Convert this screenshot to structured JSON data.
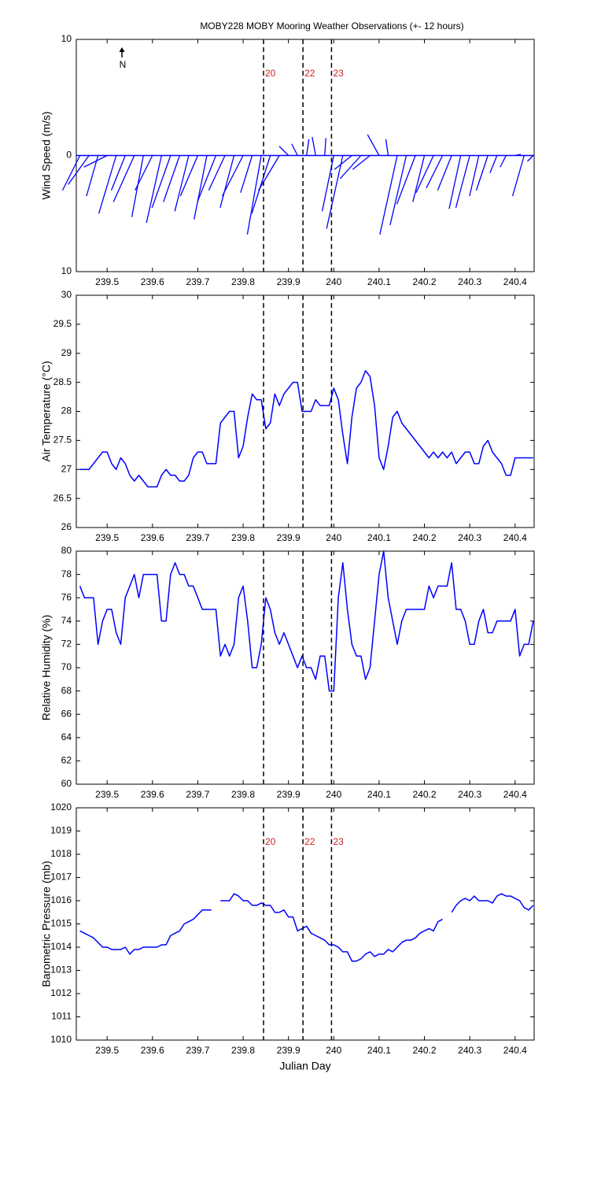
{
  "chart_data": [
    {
      "type": "stick",
      "title": "MOBY228 MOBY Mooring Weather Observations (+- 12 hours)",
      "y_label": "Wind Speed (m/s)",
      "north_label": "N",
      "color": "#0000ff",
      "x": [
        239.44,
        239.46,
        239.48,
        239.5,
        239.52,
        239.54,
        239.56,
        239.58,
        239.6,
        239.62,
        239.64,
        239.66,
        239.68,
        239.7,
        239.72,
        239.74,
        239.76,
        239.78,
        239.8,
        239.82,
        239.84,
        239.86,
        239.88,
        239.9,
        239.92,
        239.94,
        239.96,
        239.98,
        240,
        240.02,
        240.04,
        240.06,
        240.08,
        240.1,
        240.12,
        240.14,
        240.16,
        240.18,
        240.2,
        240.22,
        240.24,
        240.26,
        240.28,
        240.3,
        240.32,
        240.34,
        240.36,
        240.38,
        240.4,
        240.42,
        240.44
      ],
      "u": [
        -1.5,
        -1.8,
        -1,
        -2,
        -1.5,
        -1.2,
        -1.8,
        -1,
        -1.5,
        -1.3,
        -1.6,
        -1.4,
        -1.2,
        -1.5,
        -1.1,
        -1.6,
        -1.4,
        -1.2,
        -1.8,
        -1,
        -1.2,
        -1.6,
        -1.8,
        -0.8,
        -0.5,
        0.2,
        -0.3,
        0.1,
        -1,
        -1.4,
        -1.5,
        -1.8,
        -1.5,
        -1,
        -0.2,
        -1.5,
        -1.4,
        -1.6,
        -1,
        -1.5,
        -1.4,
        -1.2,
        -1,
        -1.2,
        -0.8,
        -1,
        -0.6,
        -0.5,
        0.5,
        -1,
        -0.5
      ],
      "v": [
        -3,
        -2.5,
        -3.5,
        -1,
        -5,
        -3,
        -4,
        -5.3,
        -3,
        -5.8,
        -4.5,
        -4,
        -4.8,
        -3.5,
        -5.5,
        -4,
        -3,
        -4.5,
        -3.5,
        -3.2,
        -6.8,
        -5,
        -3,
        0.8,
        1,
        1.4,
        1.6,
        1.5,
        -4.8,
        -6.3,
        -1.2,
        -2,
        -1.2,
        1.8,
        1.4,
        -6.8,
        -6,
        -4.2,
        -4,
        -3.2,
        -2.8,
        -3,
        -4.6,
        -4.5,
        -3.5,
        -3,
        -1.5,
        -1,
        0.1,
        -3.5,
        -0.5
      ],
      "xlim": [
        239.432,
        240.442
      ],
      "xticks": [
        239.5,
        239.6,
        239.7,
        239.8,
        239.9,
        240,
        240.1,
        240.2,
        240.3,
        240.4
      ],
      "ylim": [
        -10,
        10
      ],
      "yticks": [
        10,
        0,
        {
          "value": -10,
          "label": "10"
        }
      ],
      "vlines": [
        239.845,
        239.932,
        239.995
      ],
      "vline_labels": [
        "20",
        "22",
        "23"
      ],
      "vline_color": "#cc2222"
    },
    {
      "type": "line",
      "y_label": "Air Temperature (°C)",
      "color": "#0000ff",
      "x": [
        239.44,
        239.45,
        239.46,
        239.47,
        239.48,
        239.49,
        239.5,
        239.51,
        239.52,
        239.53,
        239.54,
        239.55,
        239.56,
        239.57,
        239.58,
        239.59,
        239.6,
        239.61,
        239.62,
        239.63,
        239.64,
        239.65,
        239.66,
        239.67,
        239.68,
        239.69,
        239.7,
        239.71,
        239.72,
        239.73,
        239.74,
        239.75,
        239.76,
        239.77,
        239.78,
        239.79,
        239.8,
        239.81,
        239.82,
        239.83,
        239.84,
        239.85,
        239.86,
        239.87,
        239.88,
        239.89,
        239.9,
        239.91,
        239.92,
        239.93,
        239.94,
        239.95,
        239.96,
        239.97,
        239.98,
        239.99,
        240,
        240.01,
        240.02,
        240.03,
        240.04,
        240.05,
        240.06,
        240.07,
        240.08,
        240.09,
        240.1,
        240.11,
        240.12,
        240.13,
        240.14,
        240.15,
        240.16,
        240.17,
        240.18,
        240.19,
        240.2,
        240.21,
        240.22,
        240.23,
        240.24,
        240.25,
        240.26,
        240.27,
        240.28,
        240.29,
        240.3,
        240.31,
        240.32,
        240.33,
        240.34,
        240.35,
        240.36,
        240.37,
        240.38,
        240.39,
        240.4,
        240.41,
        240.42,
        240.43,
        240.44
      ],
      "values": [
        27,
        27,
        27,
        27.1,
        27.2,
        27.3,
        27.3,
        27.1,
        27,
        27.2,
        27.1,
        26.9,
        26.8,
        26.9,
        26.8,
        26.7,
        26.7,
        26.7,
        26.9,
        27,
        26.9,
        26.9,
        26.8,
        26.8,
        26.9,
        27.2,
        27.3,
        27.3,
        27.1,
        27.1,
        27.1,
        27.8,
        27.9,
        28,
        28,
        27.2,
        27.4,
        27.9,
        28.3,
        28.2,
        28.2,
        27.7,
        27.8,
        28.3,
        28.1,
        28.3,
        28.4,
        28.5,
        28.5,
        28,
        28,
        28,
        28.2,
        28.1,
        28.1,
        28.1,
        28.4,
        28.2,
        27.6,
        27.1,
        27.9,
        28.4,
        28.5,
        28.7,
        28.6,
        28.1,
        27.2,
        27,
        27.4,
        27.9,
        28,
        27.8,
        27.7,
        27.6,
        27.5,
        27.4,
        27.3,
        27.2,
        27.3,
        27.2,
        27.3,
        27.2,
        27.3,
        27.1,
        27.2,
        27.3,
        27.3,
        27.1,
        27.1,
        27.4,
        27.5,
        27.3,
        27.2,
        27.1,
        26.9,
        26.9,
        27.2,
        27.2,
        27.2,
        27.2,
        27.2
      ],
      "xlim": [
        239.432,
        240.442
      ],
      "xticks": [
        239.5,
        239.6,
        239.7,
        239.8,
        239.9,
        240,
        240.1,
        240.2,
        240.3,
        240.4
      ],
      "ylim": [
        26,
        30
      ],
      "yticks": [
        26,
        26.5,
        27,
        27.5,
        28,
        28.5,
        29,
        29.5,
        30
      ],
      "vlines": [
        239.845,
        239.932,
        239.995
      ]
    },
    {
      "type": "line",
      "y_label": "Relative Humidity (%)",
      "color": "#0000ff",
      "x": [
        239.44,
        239.45,
        239.46,
        239.47,
        239.48,
        239.49,
        239.5,
        239.51,
        239.52,
        239.53,
        239.54,
        239.55,
        239.56,
        239.57,
        239.58,
        239.59,
        239.6,
        239.61,
        239.62,
        239.63,
        239.64,
        239.65,
        239.66,
        239.67,
        239.68,
        239.69,
        239.7,
        239.71,
        239.72,
        239.73,
        239.74,
        239.75,
        239.76,
        239.77,
        239.78,
        239.79,
        239.8,
        239.81,
        239.82,
        239.83,
        239.84,
        239.85,
        239.86,
        239.87,
        239.88,
        239.89,
        239.9,
        239.91,
        239.92,
        239.93,
        239.94,
        239.95,
        239.96,
        239.97,
        239.98,
        239.99,
        240,
        240.01,
        240.02,
        240.03,
        240.04,
        240.05,
        240.06,
        240.07,
        240.08,
        240.09,
        240.1,
        240.11,
        240.12,
        240.13,
        240.14,
        240.15,
        240.16,
        240.17,
        240.18,
        240.19,
        240.2,
        240.21,
        240.22,
        240.23,
        240.24,
        240.25,
        240.26,
        240.27,
        240.28,
        240.29,
        240.3,
        240.31,
        240.32,
        240.33,
        240.34,
        240.35,
        240.36,
        240.37,
        240.38,
        240.39,
        240.4,
        240.41,
        240.42,
        240.43,
        240.44
      ],
      "values": [
        77,
        76,
        76,
        76,
        72,
        74,
        75,
        75,
        73,
        72,
        76,
        77,
        78,
        76,
        78,
        78,
        78,
        78,
        74,
        74,
        78,
        79,
        78,
        78,
        77,
        77,
        76,
        75,
        75,
        75,
        75,
        71,
        72,
        71,
        72,
        76,
        77,
        74,
        70,
        70,
        72,
        76,
        75,
        73,
        72,
        73,
        72,
        71,
        70,
        71,
        70,
        70,
        69,
        71,
        71,
        68,
        68,
        76,
        79,
        75,
        72,
        71,
        71,
        69,
        70,
        74,
        78,
        80,
        76,
        74,
        72,
        74,
        75,
        75,
        75,
        75,
        75,
        77,
        76,
        77,
        77,
        77,
        79,
        75,
        75,
        74,
        72,
        72,
        74,
        75,
        73,
        73,
        74,
        74,
        74,
        74,
        75,
        71,
        72,
        72,
        74
      ],
      "xlim": [
        239.432,
        240.442
      ],
      "xticks": [
        239.5,
        239.6,
        239.7,
        239.8,
        239.9,
        240,
        240.1,
        240.2,
        240.3,
        240.4
      ],
      "ylim": [
        60,
        80
      ],
      "yticks": [
        60,
        62,
        64,
        66,
        68,
        70,
        72,
        74,
        76,
        78,
        80
      ],
      "vlines": [
        239.845,
        239.932,
        239.995
      ]
    },
    {
      "type": "line",
      "y_label": "Barometric Pressure (mb)",
      "x_label": "Julian Day",
      "color": "#0000ff",
      "x": [
        239.44,
        239.45,
        239.46,
        239.47,
        239.48,
        239.49,
        239.5,
        239.51,
        239.52,
        239.53,
        239.54,
        239.55,
        239.56,
        239.57,
        239.58,
        239.59,
        239.6,
        239.61,
        239.62,
        239.63,
        239.64,
        239.65,
        239.66,
        239.67,
        239.68,
        239.69,
        239.7,
        239.71,
        239.72,
        239.73,
        239.74,
        239.75,
        239.76,
        239.77,
        239.78,
        239.79,
        239.8,
        239.81,
        239.82,
        239.83,
        239.84,
        239.85,
        239.86,
        239.87,
        239.88,
        239.89,
        239.9,
        239.91,
        239.92,
        239.93,
        239.94,
        239.95,
        239.96,
        239.97,
        239.98,
        239.99,
        240,
        240.01,
        240.02,
        240.03,
        240.04,
        240.05,
        240.06,
        240.07,
        240.08,
        240.09,
        240.1,
        240.11,
        240.12,
        240.13,
        240.14,
        240.15,
        240.16,
        240.17,
        240.18,
        240.19,
        240.2,
        240.21,
        240.22,
        240.23,
        240.24,
        240.25,
        240.26,
        240.27,
        240.28,
        240.29,
        240.3,
        240.31,
        240.32,
        240.33,
        240.34,
        240.35,
        240.36,
        240.37,
        240.38,
        240.39,
        240.4,
        240.41,
        240.42,
        240.43,
        240.44
      ],
      "values": [
        1014.7,
        1014.6,
        1014.5,
        1014.4,
        1014.2,
        1014,
        1014,
        1013.9,
        1013.9,
        1013.9,
        1014,
        1013.7,
        1013.9,
        1013.9,
        1014,
        1014,
        1014,
        1014,
        1014.1,
        1014.1,
        1014.5,
        1014.6,
        1014.7,
        1015,
        1015.1,
        1015.2,
        1015.4,
        1015.6,
        1015.6,
        1015.6,
        null,
        1016,
        1016,
        1016,
        1016.3,
        1016.2,
        1016,
        1016,
        1015.8,
        1015.8,
        1015.9,
        1015.8,
        1015.8,
        1015.5,
        1015.5,
        1015.6,
        1015.3,
        1015.3,
        1014.7,
        1014.8,
        1014.9,
        1014.6,
        1014.5,
        1014.4,
        1014.3,
        1014.1,
        1014.1,
        1014,
        1013.8,
        1013.8,
        1013.4,
        1013.4,
        1013.5,
        1013.7,
        1013.8,
        1013.6,
        1013.7,
        1013.7,
        1013.9,
        1013.8,
        1014,
        1014.2,
        1014.3,
        1014.3,
        1014.4,
        1014.6,
        1014.7,
        1014.8,
        1014.7,
        1015.1,
        1015.2,
        null,
        1015.5,
        1015.8,
        1016,
        1016.1,
        1016,
        1016.2,
        1016,
        1016,
        1016,
        1015.9,
        1016.2,
        1016.3,
        1016.2,
        1016.2,
        1016.1,
        1016,
        1015.7,
        1015.6,
        1015.8
      ],
      "xlim": [
        239.432,
        240.442
      ],
      "xticks": [
        239.5,
        239.6,
        239.7,
        239.8,
        239.9,
        240,
        240.1,
        240.2,
        240.3,
        240.4
      ],
      "ylim": [
        1010,
        1020
      ],
      "yticks": [
        1010,
        1011,
        1012,
        1013,
        1014,
        1015,
        1016,
        1017,
        1018,
        1019,
        1020
      ],
      "vlines": [
        239.845,
        239.932,
        239.995
      ],
      "vline_labels": [
        "20",
        "22",
        "23"
      ],
      "vline_color": "#cc2222"
    }
  ]
}
